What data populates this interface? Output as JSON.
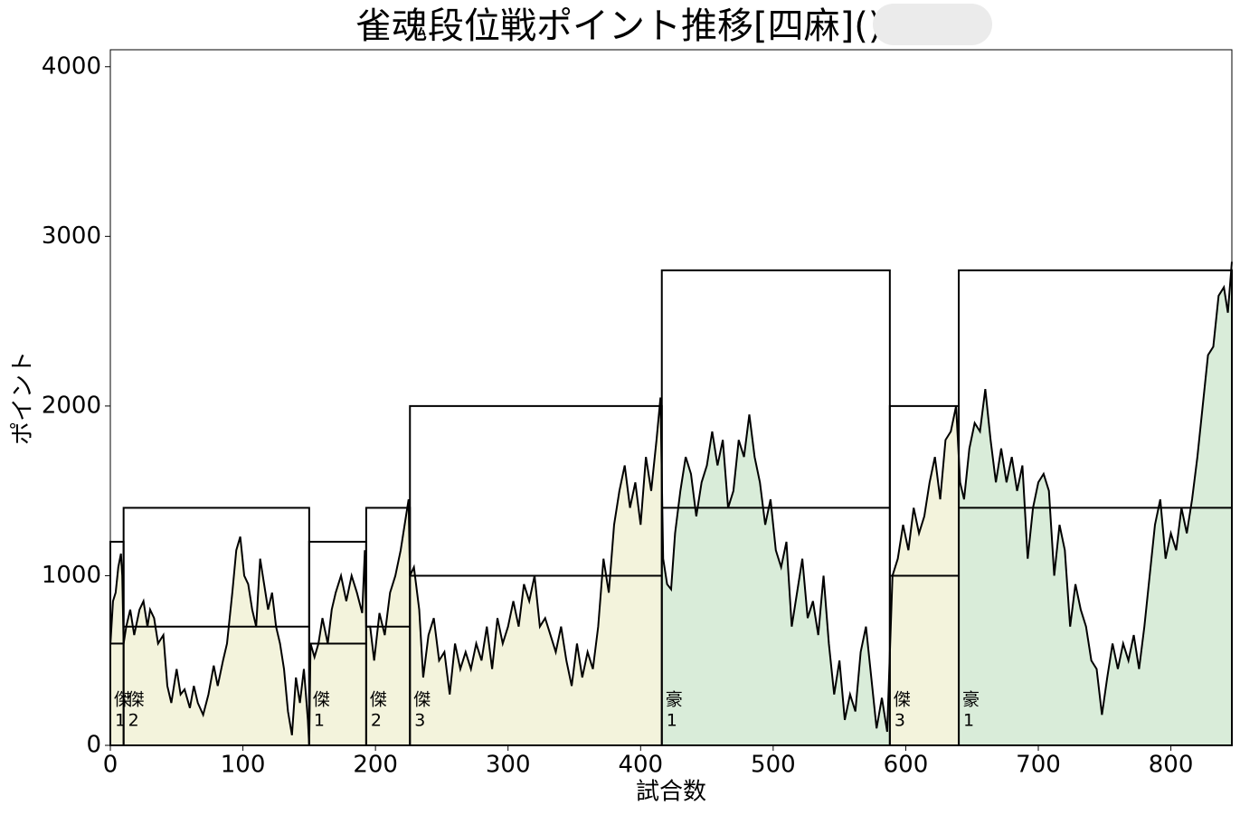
{
  "chart_data": {
    "type": "line",
    "title": "雀魂段位戦ポイント推移[四麻]()",
    "xlabel": "試合数",
    "ylabel": "ポイント",
    "xlim": [
      0,
      846
    ],
    "ylim": [
      0,
      4100
    ],
    "xticks": [
      0,
      100,
      200,
      300,
      400,
      500,
      600,
      700,
      800
    ],
    "yticks": [
      0,
      1000,
      2000,
      3000,
      4000
    ],
    "line_color": "#000000",
    "segments": [
      {
        "rank": "傑",
        "level": "1",
        "start": 0,
        "end": 10,
        "base": 600,
        "max": 1200,
        "color": "#f3f3dc"
      },
      {
        "rank": "傑",
        "level": "2",
        "start": 10,
        "end": 150,
        "base": 700,
        "max": 1400,
        "color": "#f3f3dc"
      },
      {
        "rank": "傑",
        "level": "1",
        "start": 150,
        "end": 193,
        "base": 600,
        "max": 1200,
        "color": "#f3f3dc"
      },
      {
        "rank": "傑",
        "level": "2",
        "start": 193,
        "end": 226,
        "base": 700,
        "max": 1400,
        "color": "#f3f3dc"
      },
      {
        "rank": "傑",
        "level": "3",
        "start": 226,
        "end": 416,
        "base": 1000,
        "max": 2000,
        "color": "#f3f3dc"
      },
      {
        "rank": "豪",
        "level": "1",
        "start": 416,
        "end": 588,
        "base": 1400,
        "max": 2800,
        "color": "#d9ecd9"
      },
      {
        "rank": "傑",
        "level": "3",
        "start": 588,
        "end": 640,
        "base": 1000,
        "max": 2000,
        "color": "#f3f3dc"
      },
      {
        "rank": "豪",
        "level": "1",
        "start": 640,
        "end": 846,
        "base": 1400,
        "max": 2800,
        "color": "#d9ecd9"
      }
    ],
    "x": [
      0,
      2,
      4,
      6,
      8,
      9,
      10,
      12,
      15,
      18,
      22,
      25,
      28,
      30,
      33,
      36,
      40,
      43,
      46,
      50,
      53,
      56,
      60,
      63,
      66,
      70,
      74,
      78,
      81,
      85,
      88,
      92,
      95,
      98,
      101,
      104,
      107,
      110,
      113,
      116,
      119,
      122,
      125,
      128,
      131,
      134,
      137,
      140,
      143,
      146,
      149,
      150,
      151,
      154,
      157,
      160,
      164,
      167,
      170,
      174,
      178,
      182,
      186,
      190,
      192,
      193,
      196,
      199,
      203,
      207,
      211,
      215,
      219,
      222,
      225,
      226,
      229,
      233,
      236,
      240,
      244,
      248,
      252,
      256,
      260,
      264,
      268,
      272,
      276,
      280,
      284,
      288,
      292,
      296,
      300,
      304,
      308,
      312,
      316,
      320,
      324,
      328,
      332,
      336,
      340,
      344,
      348,
      352,
      356,
      360,
      364,
      368,
      372,
      376,
      380,
      384,
      388,
      392,
      396,
      400,
      404,
      408,
      412,
      415,
      417,
      420,
      423,
      426,
      430,
      434,
      438,
      442,
      446,
      450,
      454,
      458,
      462,
      466,
      470,
      474,
      478,
      482,
      486,
      490,
      494,
      498,
      502,
      506,
      510,
      514,
      518,
      522,
      526,
      530,
      534,
      538,
      542,
      546,
      550,
      554,
      558,
      562,
      566,
      570,
      574,
      578,
      582,
      586,
      590,
      594,
      598,
      602,
      606,
      610,
      614,
      618,
      622,
      626,
      630,
      634,
      638,
      641,
      644,
      648,
      652,
      656,
      660,
      664,
      668,
      672,
      676,
      680,
      684,
      688,
      692,
      696,
      700,
      704,
      708,
      712,
      716,
      720,
      724,
      728,
      732,
      736,
      740,
      744,
      748,
      752,
      756,
      760,
      764,
      768,
      772,
      776,
      780,
      784,
      788,
      792,
      796,
      800,
      804,
      808,
      812,
      816,
      820,
      824,
      828,
      832,
      836,
      840,
      843,
      846
    ],
    "values": [
      590,
      850,
      900,
      1050,
      1130,
      1000,
      600,
      700,
      800,
      650,
      800,
      850,
      700,
      800,
      750,
      600,
      650,
      350,
      250,
      450,
      300,
      330,
      220,
      350,
      250,
      180,
      300,
      470,
      350,
      500,
      600,
      900,
      1150,
      1230,
      1000,
      950,
      800,
      700,
      1100,
      950,
      800,
      900,
      700,
      600,
      450,
      200,
      60,
      400,
      250,
      450,
      150,
      0,
      600,
      520,
      600,
      750,
      600,
      800,
      900,
      1000,
      850,
      1000,
      900,
      780,
      1150,
      700,
      700,
      500,
      780,
      650,
      900,
      1000,
      1150,
      1300,
      1450,
      1000,
      1050,
      800,
      400,
      650,
      750,
      500,
      550,
      300,
      600,
      450,
      550,
      450,
      600,
      500,
      700,
      450,
      750,
      600,
      700,
      850,
      700,
      950,
      850,
      1000,
      700,
      750,
      650,
      550,
      700,
      500,
      350,
      600,
      400,
      550,
      450,
      700,
      1100,
      900,
      1300,
      1500,
      1650,
      1400,
      1550,
      1300,
      1700,
      1500,
      1800,
      2050,
      1100,
      950,
      920,
      1250,
      1500,
      1700,
      1600,
      1350,
      1550,
      1650,
      1850,
      1650,
      1800,
      1400,
      1500,
      1800,
      1700,
      1950,
      1700,
      1550,
      1300,
      1450,
      1150,
      1050,
      1200,
      700,
      900,
      1100,
      750,
      850,
      650,
      1000,
      600,
      300,
      500,
      150,
      300,
      200,
      550,
      700,
      400,
      100,
      280,
      80,
      1000,
      1100,
      1300,
      1150,
      1400,
      1250,
      1350,
      1550,
      1700,
      1450,
      1800,
      1850,
      2000,
      1550,
      1450,
      1750,
      1900,
      1850,
      2100,
      1800,
      1550,
      1750,
      1550,
      1700,
      1500,
      1650,
      1100,
      1400,
      1550,
      1600,
      1500,
      1000,
      1300,
      1150,
      700,
      950,
      800,
      700,
      500,
      450,
      180,
      400,
      600,
      450,
      600,
      500,
      650,
      450,
      700,
      1000,
      1300,
      1450,
      1100,
      1250,
      1150,
      1400,
      1250,
      1450,
      1700,
      2000,
      2300,
      2350,
      2650,
      2700,
      2550,
      2850
    ]
  }
}
